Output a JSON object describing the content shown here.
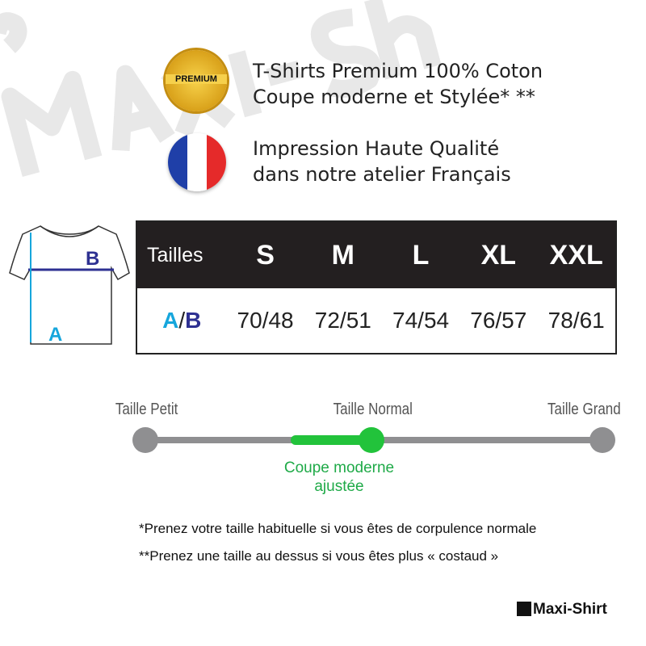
{
  "watermark": "Maxi-Shirt",
  "features": [
    {
      "icon": "premium-badge-icon",
      "badge_text": "PREMIUM",
      "lines": [
        "T-Shirts Premium 100% Coton",
        "Coupe moderne et Stylée* **"
      ]
    },
    {
      "icon": "france-flag-icon",
      "lines": [
        "Impression Haute Qualité",
        "dans notre atelier Français"
      ]
    }
  ],
  "diagram": {
    "label_a": "A",
    "label_b": "B"
  },
  "size_table": {
    "header_label": "Tailles",
    "sizes": [
      "S",
      "M",
      "L",
      "XL",
      "XXL"
    ],
    "row_label_a": "A",
    "row_label_sep": "/",
    "row_label_b": "B",
    "values": [
      "70/48",
      "72/51",
      "74/54",
      "76/57",
      "78/61"
    ]
  },
  "fit_scale": {
    "labels": [
      "Taille Petit",
      "Taille Normal",
      "Taille Grand"
    ],
    "selected": "Taille Normal",
    "fit_note_line1": "Coupe moderne",
    "fit_note_line2": "ajustée",
    "colors": {
      "track": "#8f8f91",
      "highlight": "#22c33b"
    }
  },
  "notes": [
    "*Prenez votre taille habituelle si vous êtes de corpulence normale",
    "**Prenez une taille au dessus si vous êtes plus « costaud »"
  ],
  "logo": "Maxi-Shirt"
}
